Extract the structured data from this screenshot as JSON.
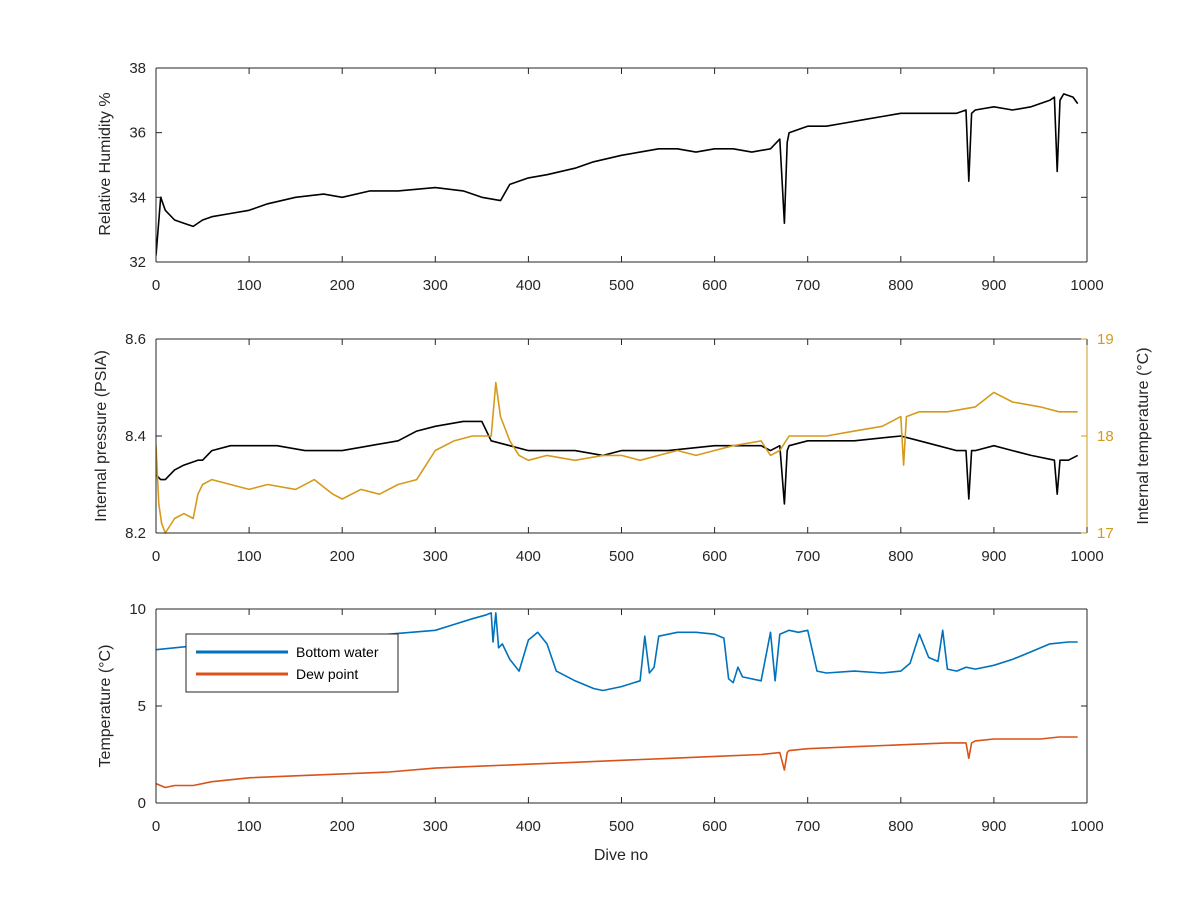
{
  "chart_data": [
    {
      "type": "line",
      "id": "humidity",
      "title": "",
      "xlabel": "",
      "ylabel": "Relative Humidity %",
      "xlim": [
        0,
        1000
      ],
      "ylim": [
        32,
        38
      ],
      "xticks": [
        0,
        100,
        200,
        300,
        400,
        500,
        600,
        700,
        800,
        900,
        1000
      ],
      "yticks": [
        32,
        34,
        36,
        38
      ],
      "grid": false,
      "series": [
        {
          "color": "#000000",
          "axis": "left",
          "x": [
            0,
            5,
            10,
            20,
            30,
            40,
            50,
            60,
            80,
            100,
            120,
            150,
            180,
            200,
            230,
            260,
            300,
            330,
            350,
            370,
            380,
            400,
            420,
            450,
            470,
            500,
            520,
            540,
            560,
            580,
            600,
            620,
            640,
            660,
            670,
            675,
            678,
            680,
            700,
            720,
            740,
            760,
            780,
            800,
            820,
            840,
            860,
            870,
            873,
            876,
            880,
            900,
            920,
            940,
            960,
            965,
            968,
            971,
            975,
            985,
            990
          ],
          "y": [
            32.2,
            34.0,
            33.6,
            33.3,
            33.2,
            33.1,
            33.3,
            33.4,
            33.5,
            33.6,
            33.8,
            34.0,
            34.1,
            34.0,
            34.2,
            34.2,
            34.3,
            34.2,
            34.0,
            33.9,
            34.4,
            34.6,
            34.7,
            34.9,
            35.1,
            35.3,
            35.4,
            35.5,
            35.5,
            35.4,
            35.5,
            35.5,
            35.4,
            35.5,
            35.8,
            33.2,
            35.7,
            36.0,
            36.2,
            36.2,
            36.3,
            36.4,
            36.5,
            36.6,
            36.6,
            36.6,
            36.6,
            36.7,
            34.5,
            36.6,
            36.7,
            36.8,
            36.7,
            36.8,
            37.0,
            37.1,
            34.8,
            37.0,
            37.2,
            37.1,
            36.9
          ]
        }
      ]
    },
    {
      "type": "line",
      "id": "pressure-temp",
      "title": "",
      "xlabel": "",
      "ylabel": "Internal pressure (PSIA)",
      "ylabel_right": "Internal temperature (°C)",
      "xlim": [
        0,
        1000
      ],
      "ylim": [
        8.2,
        8.6
      ],
      "ylim_right": [
        17,
        19
      ],
      "xticks": [
        0,
        100,
        200,
        300,
        400,
        500,
        600,
        700,
        800,
        900,
        1000
      ],
      "yticks": [
        8.2,
        8.4,
        8.6
      ],
      "yticks_right": [
        17,
        18,
        19
      ],
      "yticklabels": [
        "8.2",
        "8.4",
        "8.6"
      ],
      "grid": false,
      "series": [
        {
          "color": "#000000",
          "axis": "left",
          "x": [
            0,
            5,
            10,
            20,
            30,
            45,
            50,
            60,
            80,
            100,
            130,
            160,
            180,
            200,
            230,
            260,
            280,
            300,
            330,
            350,
            360,
            380,
            400,
            420,
            450,
            480,
            500,
            550,
            600,
            650,
            660,
            670,
            675,
            678,
            680,
            700,
            750,
            800,
            820,
            840,
            860,
            870,
            873,
            876,
            880,
            900,
            920,
            940,
            965,
            968,
            971,
            980,
            990
          ],
          "y": [
            8.32,
            8.31,
            8.31,
            8.33,
            8.34,
            8.35,
            8.35,
            8.37,
            8.38,
            8.38,
            8.38,
            8.37,
            8.37,
            8.37,
            8.38,
            8.39,
            8.41,
            8.42,
            8.43,
            8.43,
            8.39,
            8.38,
            8.37,
            8.37,
            8.37,
            8.36,
            8.37,
            8.37,
            8.38,
            8.38,
            8.37,
            8.38,
            8.26,
            8.37,
            8.38,
            8.39,
            8.39,
            8.4,
            8.39,
            8.38,
            8.37,
            8.37,
            8.27,
            8.37,
            8.37,
            8.38,
            8.37,
            8.36,
            8.35,
            8.28,
            8.35,
            8.35,
            8.36
          ]
        },
        {
          "color": "#D59A1B",
          "axis": "right",
          "x": [
            0,
            3,
            6,
            10,
            20,
            30,
            40,
            45,
            50,
            60,
            80,
            100,
            120,
            150,
            170,
            190,
            200,
            220,
            240,
            260,
            280,
            290,
            300,
            320,
            340,
            360,
            365,
            370,
            380,
            390,
            400,
            420,
            450,
            480,
            500,
            520,
            540,
            560,
            580,
            600,
            620,
            650,
            660,
            670,
            680,
            700,
            720,
            750,
            780,
            800,
            803,
            806,
            820,
            850,
            880,
            900,
            920,
            950,
            970,
            990
          ],
          "y": [
            17.9,
            17.3,
            17.1,
            17.0,
            17.15,
            17.2,
            17.15,
            17.4,
            17.5,
            17.55,
            17.5,
            17.45,
            17.5,
            17.45,
            17.55,
            17.4,
            17.35,
            17.45,
            17.4,
            17.5,
            17.55,
            17.7,
            17.85,
            17.95,
            18.0,
            18.0,
            18.55,
            18.2,
            17.95,
            17.8,
            17.75,
            17.8,
            17.75,
            17.8,
            17.8,
            17.75,
            17.8,
            17.85,
            17.8,
            17.85,
            17.9,
            17.95,
            17.8,
            17.85,
            18.0,
            18.0,
            18.0,
            18.05,
            18.1,
            18.2,
            17.7,
            18.2,
            18.25,
            18.25,
            18.3,
            18.45,
            18.35,
            18.3,
            18.25,
            18.25
          ]
        }
      ]
    },
    {
      "type": "line",
      "id": "temperature",
      "title": "",
      "xlabel": "Dive no",
      "ylabel": "Temperature (°C)",
      "xlim": [
        0,
        1000
      ],
      "ylim": [
        0,
        10
      ],
      "xticks": [
        0,
        100,
        200,
        300,
        400,
        500,
        600,
        700,
        800,
        900,
        1000
      ],
      "yticks": [
        0,
        5,
        10
      ],
      "grid": false,
      "legend": "top-left",
      "series": [
        {
          "name": "Bottom water",
          "color": "#0072BD",
          "axis": "left",
          "x": [
            0,
            20,
            40,
            60,
            80,
            100,
            150,
            200,
            250,
            300,
            320,
            340,
            355,
            360,
            362,
            365,
            368,
            372,
            380,
            390,
            400,
            410,
            420,
            430,
            450,
            470,
            480,
            500,
            520,
            525,
            530,
            535,
            540,
            560,
            580,
            600,
            610,
            615,
            620,
            625,
            630,
            650,
            660,
            665,
            670,
            680,
            690,
            700,
            710,
            720,
            750,
            780,
            800,
            810,
            820,
            830,
            840,
            845,
            850,
            860,
            870,
            880,
            900,
            920,
            940,
            960,
            980,
            990
          ],
          "y": [
            7.9,
            8.0,
            8.1,
            8.3,
            8.4,
            8.4,
            8.45,
            8.5,
            8.7,
            8.9,
            9.2,
            9.5,
            9.7,
            9.8,
            8.3,
            9.8,
            8.0,
            8.2,
            7.4,
            6.8,
            8.4,
            8.8,
            8.2,
            6.8,
            6.3,
            5.9,
            5.8,
            6.0,
            6.3,
            8.6,
            6.7,
            7.0,
            8.6,
            8.8,
            8.8,
            8.7,
            8.5,
            6.4,
            6.2,
            7.0,
            6.5,
            6.3,
            8.8,
            6.3,
            8.7,
            8.9,
            8.8,
            8.9,
            6.8,
            6.7,
            6.8,
            6.7,
            6.8,
            7.2,
            8.7,
            7.5,
            7.3,
            8.9,
            6.9,
            6.8,
            7.0,
            6.9,
            7.1,
            7.4,
            7.8,
            8.2,
            8.3,
            8.3
          ]
        },
        {
          "name": "Dew point",
          "color": "#D95319",
          "axis": "left",
          "x": [
            0,
            10,
            20,
            40,
            60,
            100,
            150,
            200,
            250,
            300,
            350,
            400,
            450,
            500,
            550,
            600,
            650,
            670,
            675,
            678,
            680,
            700,
            750,
            800,
            850,
            870,
            873,
            876,
            880,
            900,
            950,
            970,
            990
          ],
          "y": [
            1.0,
            0.8,
            0.9,
            0.9,
            1.1,
            1.3,
            1.4,
            1.5,
            1.6,
            1.8,
            1.9,
            2.0,
            2.1,
            2.2,
            2.3,
            2.4,
            2.5,
            2.6,
            1.7,
            2.6,
            2.7,
            2.8,
            2.9,
            3.0,
            3.1,
            3.1,
            2.3,
            3.1,
            3.2,
            3.3,
            3.3,
            3.4,
            3.4
          ]
        }
      ]
    }
  ]
}
